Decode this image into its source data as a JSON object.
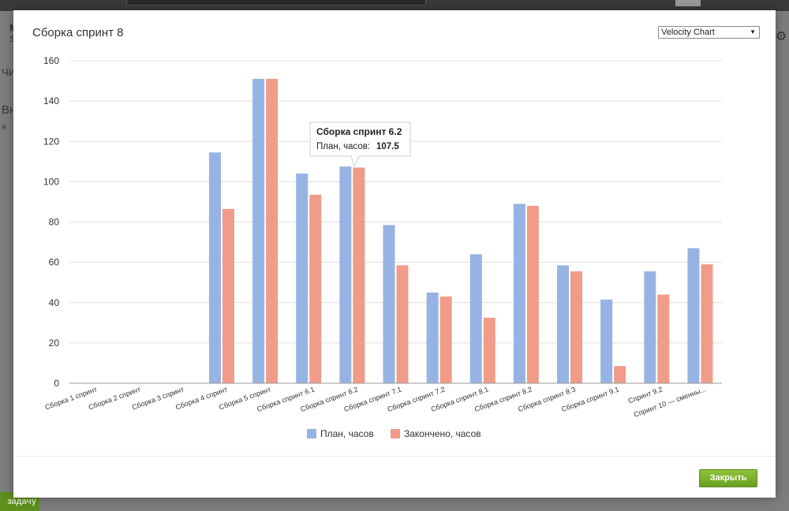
{
  "background": {
    "fragment_left_top": "M",
    "fragment_left_sub": "S",
    "fragment_nav": "ЧИ",
    "fragment_heading": "Вн",
    "fragment_small": "я",
    "bottom_button_label": "задачу"
  },
  "modal": {
    "title": "Сборка спринт 8",
    "chart_selector": {
      "selected": "Velocity Chart"
    },
    "close_label": "Закрыть"
  },
  "tooltip": {
    "title": "Сборка спринт 6.2",
    "label": "План, часов:",
    "value": "107.5"
  },
  "colors": {
    "plan": "#97b3e3",
    "done": "#f09c88",
    "grid": "#e0e0e0",
    "close_button": "#7ab02c"
  },
  "chart_data": {
    "type": "bar",
    "categories": [
      "Сборка 1 спринт",
      "Сборка 2 спринт",
      "Сборка 3 спринт",
      "Сборка 4 спринт",
      "Сборка 5 спринт",
      "Сборка спринт 6.1",
      "Сборка спринт 6.2",
      "Сборка спринт 7.1",
      "Сборка спринт 7.2",
      "Сборка спринт 8.1",
      "Сборка спринт 8.2",
      "Сборка спринт 8.3",
      "Сборка спринт 9.1",
      "Спринт 9.2",
      "Спринт 10 — сменны..."
    ],
    "series": [
      {
        "name": "План, часов",
        "values": [
          0,
          0,
          0,
          114.5,
          151,
          104,
          107.5,
          78.5,
          45,
          64,
          89,
          58.5,
          41.5,
          55.5,
          67
        ]
      },
      {
        "name": "Закончено, часов",
        "values": [
          0,
          0,
          0,
          86.5,
          151,
          93.5,
          107,
          58.5,
          43,
          32.5,
          88,
          55.5,
          8.5,
          44,
          59
        ]
      }
    ],
    "yticks": [
      "0",
      "20",
      "40",
      "60",
      "80",
      "100",
      "120",
      "140",
      "160"
    ],
    "ylim": [
      0,
      160
    ],
    "grid": true,
    "legend": "bottom",
    "highlighted_category": "Сборка спринт 6.2"
  }
}
